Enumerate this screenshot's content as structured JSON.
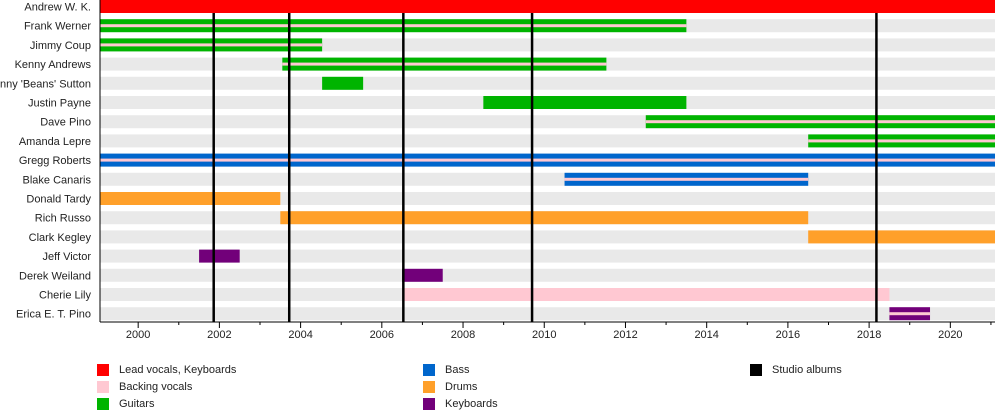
{
  "chart_data": {
    "type": "timeline",
    "title": "",
    "xlim": [
      1999.06,
      2021.1
    ],
    "x_ticks": [
      2000,
      2002,
      2004,
      2006,
      2008,
      2010,
      2012,
      2014,
      2016,
      2018,
      2020
    ],
    "x_tick_labels": [
      "2000",
      "2002",
      "2004",
      "2006",
      "2008",
      "2010",
      "2012",
      "2014",
      "2016",
      "2018",
      "2020"
    ],
    "roles": {
      "lead": {
        "label": "Lead vocals, Keyboards",
        "color": "#ff0000"
      },
      "backing": {
        "label": "Backing vocals",
        "color": "#ffc8d2"
      },
      "guitars": {
        "label": "Guitars",
        "color": "#00b400"
      },
      "bass": {
        "label": "Bass",
        "color": "#0066cc"
      },
      "drums": {
        "label": "Drums",
        "color": "#ffa02a"
      },
      "keys": {
        "label": "Keyboards",
        "color": "#72007a"
      },
      "albums": {
        "label": "Studio albums",
        "color": "#000000"
      }
    },
    "members": [
      {
        "name": "Andrew W. K.",
        "start": 1999.06,
        "end": 2021.1,
        "role": "lead"
      },
      {
        "name": "Frank Werner",
        "start": 1999.06,
        "end": 2013.5,
        "role": "guitars",
        "secondary": "backing"
      },
      {
        "name": "Jimmy Coup",
        "start": 1999.06,
        "end": 2004.53,
        "role": "guitars",
        "secondary": "backing"
      },
      {
        "name": "Kenny Andrews",
        "start": 2003.55,
        "end": 2011.53,
        "role": "guitars",
        "secondary": "backing"
      },
      {
        "name": "Johnny 'Beans' Sutton",
        "start": 2004.53,
        "end": 2005.54,
        "role": "guitars"
      },
      {
        "name": "Justin Payne",
        "start": 2008.5,
        "end": 2013.5,
        "role": "guitars"
      },
      {
        "name": "Dave Pino",
        "start": 2012.5,
        "end": 2021.1,
        "role": "guitars",
        "secondary": "backing"
      },
      {
        "name": "Amanda Lepre",
        "start": 2016.5,
        "end": 2021.1,
        "role": "guitars",
        "secondary": "backing"
      },
      {
        "name": "Gregg Roberts",
        "start": 1999.06,
        "end": 2021.1,
        "role": "bass",
        "secondary": "backing"
      },
      {
        "name": "Blake Canaris",
        "start": 2010.5,
        "end": 2016.5,
        "role": "bass",
        "secondary": "backing"
      },
      {
        "name": "Donald Tardy",
        "start": 1999.06,
        "end": 2003.5,
        "role": "drums"
      },
      {
        "name": "Rich Russo",
        "start": 2003.5,
        "end": 2016.5,
        "role": "drums"
      },
      {
        "name": "Clark Kegley",
        "start": 2016.5,
        "end": 2021.1,
        "role": "drums"
      },
      {
        "name": "Jeff Victor",
        "start": 2001.5,
        "end": 2002.5,
        "role": "keys"
      },
      {
        "name": "Derek Weiland",
        "start": 2006.5,
        "end": 2007.5,
        "role": "keys"
      },
      {
        "name": "Cherie Lily",
        "start": 2006.5,
        "end": 2018.5,
        "role": "backing"
      },
      {
        "name": "Erica E. T. Pino",
        "start": 2018.5,
        "end": 2019.5,
        "role": "keys",
        "secondary": "backing"
      }
    ],
    "albums": [
      2001.86,
      2003.72,
      2006.53,
      2009.7,
      2018.18
    ],
    "legend_order": [
      [
        "lead",
        "backing",
        "guitars"
      ],
      [
        "bass",
        "drums",
        "keys"
      ],
      [
        "albums"
      ]
    ],
    "legend_position": "bottom"
  }
}
